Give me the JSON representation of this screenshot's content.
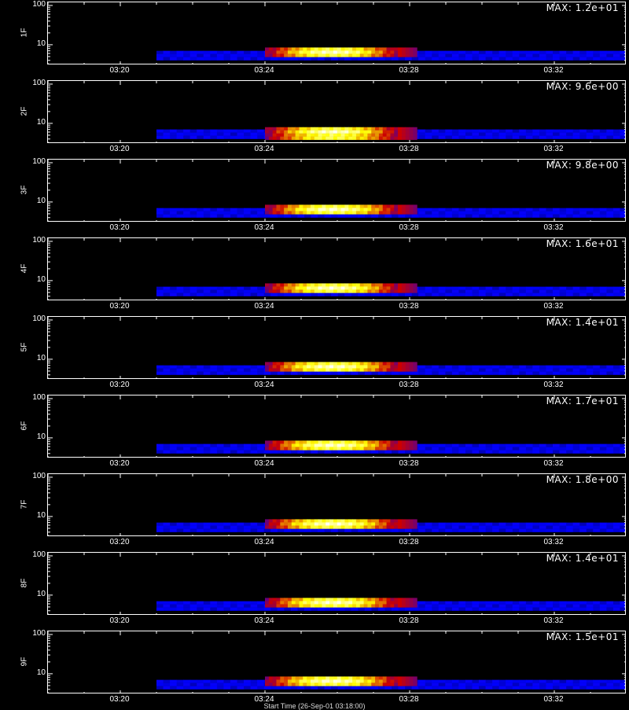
{
  "chart_data": {
    "type": "heatmap",
    "x_axis": {
      "ticks": [
        "03:20",
        "03:24",
        "03:28",
        "03:32"
      ],
      "title": "Start Time (26-Sep-01 03:18:00)"
    },
    "y_axis": {
      "scale": "log",
      "ticks": [
        "10",
        "100"
      ]
    },
    "colormap": [
      "#000000",
      "#0000ff",
      "#cc0000",
      "#ffff00",
      "#ffffff"
    ],
    "panels": [
      {
        "label": "1F",
        "max_text": "MAX: 1.2e+01",
        "max": 12.0
      },
      {
        "label": "2F",
        "max_text": "MAX: 9.6e+00",
        "max": 9.6
      },
      {
        "label": "3F",
        "max_text": "MAX: 9.8e+00",
        "max": 9.8
      },
      {
        "label": "4F",
        "max_text": "MAX: 1.6e+01",
        "max": 16.0
      },
      {
        "label": "5F",
        "max_text": "MAX: 1.4e+01",
        "max": 14.0
      },
      {
        "label": "6F",
        "max_text": "MAX: 1.7e+01",
        "max": 17.0
      },
      {
        "label": "7F",
        "max_text": "MAX: 1.8e+00",
        "max": 1.8
      },
      {
        "label": "8F",
        "max_text": "MAX: 1.4e+01",
        "max": 14.0
      },
      {
        "label": "9F",
        "max_text": "MAX: 1.5e+01",
        "max": 15.0
      }
    ]
  }
}
